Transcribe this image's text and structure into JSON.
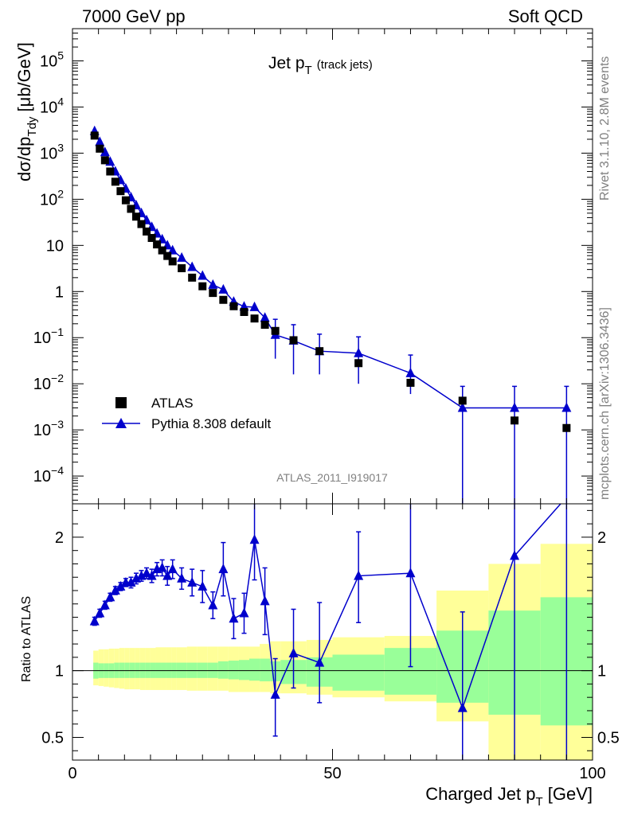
{
  "header": {
    "left": "7000 GeV pp",
    "right": "Soft QCD"
  },
  "side_text": {
    "upper": "Rivet 3.1.10,  2.8M events",
    "lower": "mcplots.cern.ch [arXiv:1306.3436]"
  },
  "main_title": {
    "base": "Jet p",
    "sub": "T",
    "extra": "(track jets)"
  },
  "analysis_id": "ATLAS_2011_I919017",
  "colors": {
    "data": "#000000",
    "mc": "#0000cc",
    "band_inner": "#99ff99",
    "band_outer": "#ffff99"
  },
  "legend": {
    "data_label": "ATLAS",
    "mc_label": "Pythia 8.308 default"
  },
  "chart_data": [
    {
      "type": "scatter",
      "yscale": "log",
      "ylabel": {
        "pre": "dσ/dp",
        "sub": "Tdy",
        "post": " [μb/GeV]"
      },
      "xlim": [
        0,
        100
      ],
      "ylim": [
        2.5e-05,
        500000.0
      ],
      "y_ticks": [
        {
          "v": 0.0001,
          "base": "10",
          "exp": "−4"
        },
        {
          "v": 0.001,
          "base": "10",
          "exp": "−3"
        },
        {
          "v": 0.01,
          "base": "10",
          "exp": "−2"
        },
        {
          "v": 0.1,
          "base": "10",
          "exp": "−1"
        },
        {
          "v": 1,
          "base": "1",
          "exp": ""
        },
        {
          "v": 10,
          "base": "10",
          "exp": ""
        },
        {
          "v": 100,
          "base": "10",
          "exp": "2"
        },
        {
          "v": 1000,
          "base": "10",
          "exp": "3"
        },
        {
          "v": 10000,
          "base": "10",
          "exp": "4"
        },
        {
          "v": 100000,
          "base": "10",
          "exp": "5"
        }
      ],
      "legend_position": "bottom-left",
      "series": [
        {
          "name": "ATLAS",
          "marker": "square",
          "x": [
            4.25,
            5.25,
            6.25,
            7.25,
            8.25,
            9.25,
            10.25,
            11.25,
            12.25,
            13.25,
            14.25,
            15.25,
            16.25,
            17.25,
            18.25,
            19.25,
            21,
            23,
            25,
            27,
            29,
            31,
            33,
            35,
            37,
            39,
            42.5,
            47.5,
            55,
            65,
            75,
            85,
            95
          ],
          "y": [
            2400,
            1250,
            700,
            400,
            240,
            150,
            95,
            62,
            42,
            29,
            20,
            14.5,
            10.5,
            7.8,
            5.9,
            4.5,
            3.2,
            2.0,
            1.3,
            0.93,
            0.66,
            0.48,
            0.36,
            0.26,
            0.19,
            0.14,
            0.088,
            0.051,
            0.028,
            0.0105,
            0.0043,
            0.0016,
            0.0011
          ]
        },
        {
          "name": "Pythia 8.308 default",
          "marker": "triangle",
          "x": [
            4.25,
            5.25,
            6.25,
            7.25,
            8.25,
            9.25,
            10.25,
            11.25,
            12.25,
            13.25,
            14.25,
            15.25,
            16.25,
            17.25,
            18.25,
            19.25,
            21,
            23,
            25,
            27,
            29,
            31,
            33,
            35,
            37,
            39,
            42.5,
            47.5,
            55,
            65,
            75,
            85,
            95
          ],
          "y": [
            3000,
            1750,
            1050,
            650,
            400,
            260,
            170,
            110,
            74,
            50,
            35,
            25,
            18,
            13.5,
            10,
            7.8,
            5.4,
            3.4,
            2.2,
            1.4,
            1.1,
            0.6,
            0.47,
            0.46,
            0.27,
            0.115,
            0.086,
            0.051,
            0.046,
            0.017,
            0.003,
            0.003,
            0.003
          ],
          "yerr_lo": [
            0,
            0,
            0,
            0,
            0,
            0,
            0,
            0,
            0,
            0,
            0,
            0,
            0,
            0,
            0,
            0,
            0,
            0,
            0,
            0,
            0,
            0,
            0,
            0,
            0,
            0.08,
            0.07,
            0.035,
            0.036,
            0.011,
            0.003,
            0.003,
            0.003
          ],
          "yerr_hi": [
            0,
            0,
            0,
            0,
            0,
            0,
            0,
            0,
            0,
            0,
            0,
            0,
            0,
            0,
            0,
            0,
            0,
            0,
            0,
            0,
            0,
            0,
            0,
            0,
            0,
            0.135,
            0.105,
            0.068,
            0.058,
            0.025,
            0.0058,
            0.0058,
            0.0058
          ]
        }
      ]
    },
    {
      "type": "line",
      "ylabel": "Ratio to ATLAS",
      "xlabel": {
        "pre": "Charged Jet p",
        "sub": "T",
        "post": " [GeV]"
      },
      "xlim": [
        0,
        100
      ],
      "ylim": [
        0.33,
        2.25
      ],
      "x_ticks": [
        0,
        50,
        100
      ],
      "y_ticks": [
        0.5,
        1,
        2
      ],
      "bands": {
        "edges": [
          4,
          5,
          6,
          7,
          8,
          9,
          10,
          11,
          12,
          13,
          14,
          15,
          16,
          17,
          18,
          19,
          20,
          22,
          24,
          26,
          28,
          30,
          32,
          34,
          36,
          38,
          40,
          45,
          50,
          60,
          70,
          80,
          90,
          100
        ],
        "inner": [
          [
            0.94,
            1.06
          ],
          [
            0.945,
            1.055
          ],
          [
            0.945,
            1.055
          ],
          [
            0.945,
            1.055
          ],
          [
            0.945,
            1.06
          ],
          [
            0.945,
            1.06
          ],
          [
            0.945,
            1.06
          ],
          [
            0.945,
            1.06
          ],
          [
            0.945,
            1.06
          ],
          [
            0.945,
            1.06
          ],
          [
            0.945,
            1.06
          ],
          [
            0.945,
            1.06
          ],
          [
            0.945,
            1.06
          ],
          [
            0.945,
            1.06
          ],
          [
            0.945,
            1.06
          ],
          [
            0.945,
            1.06
          ],
          [
            0.945,
            1.06
          ],
          [
            0.945,
            1.06
          ],
          [
            0.945,
            1.06
          ],
          [
            0.945,
            1.06
          ],
          [
            0.94,
            1.07
          ],
          [
            0.935,
            1.075
          ],
          [
            0.93,
            1.08
          ],
          [
            0.925,
            1.09
          ],
          [
            0.92,
            1.09
          ],
          [
            0.92,
            1.07
          ],
          [
            0.9,
            1.08
          ],
          [
            0.88,
            1.1
          ],
          [
            0.85,
            1.12
          ],
          [
            0.82,
            1.17
          ],
          [
            0.76,
            1.3
          ],
          [
            0.67,
            1.45
          ],
          [
            0.59,
            1.55
          ]
        ],
        "outer": [
          [
            0.89,
            1.15
          ],
          [
            0.885,
            1.16
          ],
          [
            0.88,
            1.16
          ],
          [
            0.875,
            1.165
          ],
          [
            0.87,
            1.165
          ],
          [
            0.865,
            1.17
          ],
          [
            0.86,
            1.17
          ],
          [
            0.86,
            1.17
          ],
          [
            0.86,
            1.17
          ],
          [
            0.855,
            1.17
          ],
          [
            0.855,
            1.17
          ],
          [
            0.855,
            1.17
          ],
          [
            0.855,
            1.175
          ],
          [
            0.855,
            1.175
          ],
          [
            0.855,
            1.175
          ],
          [
            0.855,
            1.175
          ],
          [
            0.855,
            1.175
          ],
          [
            0.85,
            1.18
          ],
          [
            0.85,
            1.18
          ],
          [
            0.85,
            1.18
          ],
          [
            0.85,
            1.18
          ],
          [
            0.84,
            1.18
          ],
          [
            0.84,
            1.18
          ],
          [
            0.84,
            1.18
          ],
          [
            0.84,
            1.2
          ],
          [
            0.83,
            1.22
          ],
          [
            0.83,
            1.22
          ],
          [
            0.82,
            1.23
          ],
          [
            0.8,
            1.25
          ],
          [
            0.77,
            1.26
          ],
          [
            0.62,
            1.6
          ],
          [
            0.33,
            1.8
          ],
          [
            0.33,
            1.95
          ]
        ]
      },
      "series": [
        {
          "name": "Pythia 8.308 default",
          "x": [
            4.25,
            5.25,
            6.25,
            7.25,
            8.25,
            9.25,
            10.25,
            11.25,
            12.25,
            13.25,
            14.25,
            15.25,
            16.25,
            17.25,
            18.25,
            19.25,
            21,
            23,
            25,
            27,
            29,
            31,
            33,
            35,
            37,
            39,
            42.5,
            47.5,
            55,
            65,
            75,
            85,
            95
          ],
          "y": [
            1.37,
            1.43,
            1.49,
            1.55,
            1.6,
            1.63,
            1.66,
            1.66,
            1.69,
            1.71,
            1.73,
            1.71,
            1.76,
            1.77,
            1.71,
            1.76,
            1.69,
            1.66,
            1.63,
            1.49,
            1.76,
            1.39,
            1.43,
            1.98,
            1.52,
            0.82,
            1.13,
            1.06,
            1.71,
            1.73,
            0.72,
            1.86,
            2.3
          ],
          "yerr_lo": [
            0.03,
            0.03,
            0.03,
            0.03,
            0.03,
            0.03,
            0.03,
            0.04,
            0.04,
            0.04,
            0.04,
            0.05,
            0.05,
            0.06,
            0.07,
            0.07,
            0.08,
            0.1,
            0.12,
            0.1,
            0.2,
            0.15,
            0.15,
            0.3,
            0.25,
            0.31,
            0.26,
            0.3,
            0.35,
            0.7,
            0.72,
            1.86,
            2.3
          ],
          "yerr_hi": [
            0.03,
            0.03,
            0.03,
            0.03,
            0.03,
            0.03,
            0.03,
            0.04,
            0.04,
            0.04,
            0.04,
            0.05,
            0.05,
            0.06,
            0.07,
            0.07,
            0.08,
            0.1,
            0.12,
            0.1,
            0.2,
            0.15,
            0.15,
            0.3,
            0.25,
            0.27,
            0.33,
            0.45,
            0.33,
            0.6,
            0.72,
            0.5,
            0.5
          ]
        }
      ]
    }
  ]
}
